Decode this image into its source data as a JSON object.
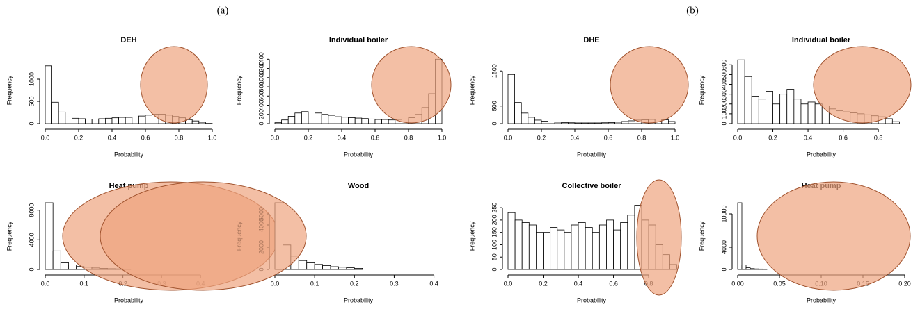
{
  "panels": [
    {
      "label": "(a)"
    },
    {
      "label": "(b)"
    }
  ],
  "chart_data": [
    {
      "type": "histogram",
      "title": "DEH",
      "xlabel": "Probability",
      "ylabel": "Frequency",
      "color": "#ffffff",
      "bins": [
        0,
        0.04,
        0.08,
        0.12,
        0.16,
        0.2,
        0.24,
        0.28,
        0.32,
        0.36,
        0.4,
        0.44,
        0.48,
        0.52,
        0.56,
        0.6,
        0.64,
        0.68,
        0.72,
        0.76,
        0.8,
        0.84,
        0.88,
        0.92,
        0.96,
        1.0
      ],
      "values": [
        1300,
        480,
        260,
        150,
        120,
        110,
        100,
        100,
        110,
        120,
        130,
        140,
        140,
        150,
        170,
        190,
        210,
        210,
        190,
        160,
        130,
        90,
        60,
        30,
        5
      ],
      "xlim": [
        0,
        1
      ],
      "xticks": [
        {
          "value": 0,
          "label": "0.0"
        },
        0.2,
        0.4,
        0.6,
        0.8,
        {
          "value": 1,
          "label": "1.0"
        }
      ],
      "ylim": [
        0,
        1500
      ],
      "yticks": [
        0,
        500,
        1000
      ]
    },
    {
      "type": "histogram",
      "title": "Individual boiler",
      "xlabel": "Probability",
      "ylabel": "Frequency",
      "color": "#ffffff",
      "bins": [
        0,
        0.04,
        0.08,
        0.12,
        0.16,
        0.2,
        0.24,
        0.28,
        0.32,
        0.36,
        0.4,
        0.44,
        0.48,
        0.52,
        0.56,
        0.6,
        0.64,
        0.68,
        0.72,
        0.76,
        0.8,
        0.84,
        0.88,
        0.92,
        0.96,
        1.0
      ],
      "values": [
        20,
        80,
        160,
        230,
        260,
        250,
        230,
        200,
        180,
        150,
        140,
        130,
        120,
        110,
        100,
        90,
        90,
        80,
        90,
        100,
        130,
        200,
        350,
        650,
        1400
      ],
      "xlim": [
        0,
        1
      ],
      "xticks": [
        {
          "value": 0,
          "label": "0.0"
        },
        0.2,
        0.4,
        0.6,
        0.8,
        {
          "value": 1,
          "label": "1.0"
        }
      ],
      "ylim": [
        0,
        1450
      ],
      "yticks": [
        0,
        200,
        400,
        600,
        800,
        1000,
        1200,
        1400
      ]
    },
    {
      "type": "histogram",
      "title": "Heat pump",
      "xlabel": "Probability",
      "ylabel": "Frequency",
      "color": "#ffffff",
      "bins": [
        0,
        0.02,
        0.04,
        0.06,
        0.08,
        0.1,
        0.12,
        0.14,
        0.16,
        0.18,
        0.2,
        0.22
      ],
      "values": [
        9000,
        2500,
        900,
        600,
        400,
        300,
        200,
        150,
        100,
        80,
        50
      ],
      "xlim": [
        0,
        0.43
      ],
      "xticks": [
        {
          "value": 0,
          "label": "0.0"
        },
        0.1,
        0.2,
        0.3,
        0.4
      ],
      "ylim": [
        0,
        9000
      ],
      "yticks": [
        0,
        4000,
        8000
      ]
    },
    {
      "type": "histogram",
      "title": "Wood",
      "xlabel": "Probability",
      "ylabel": "Frequency",
      "color": "#ffffff",
      "bins": [
        0,
        0.02,
        0.04,
        0.06,
        0.08,
        0.1,
        0.12,
        0.14,
        0.16,
        0.18,
        0.2,
        0.22
      ],
      "values": [
        6000,
        2200,
        1200,
        800,
        600,
        450,
        350,
        250,
        200,
        150,
        100
      ],
      "xlim": [
        0,
        0.42
      ],
      "xticks": [
        {
          "value": 0,
          "label": "0.0"
        },
        0.1,
        0.2,
        0.3,
        0.4
      ],
      "ylim": [
        0,
        6000
      ],
      "yticks": [
        0,
        2000,
        4000,
        5000
      ]
    },
    {
      "type": "histogram",
      "title": "DHE",
      "xlabel": "Probability",
      "ylabel": "Frequency",
      "color": "#ffffff",
      "bins": [
        0,
        0.04,
        0.08,
        0.12,
        0.16,
        0.2,
        0.24,
        0.28,
        0.32,
        0.36,
        0.4,
        0.44,
        0.48,
        0.52,
        0.56,
        0.6,
        0.64,
        0.68,
        0.72,
        0.76,
        0.8,
        0.84,
        0.88,
        0.92,
        0.96,
        1.0
      ],
      "values": [
        1400,
        600,
        300,
        180,
        100,
        70,
        50,
        40,
        30,
        25,
        20,
        20,
        20,
        20,
        25,
        30,
        40,
        60,
        80,
        100,
        110,
        120,
        130,
        110,
        60
      ],
      "xlim": [
        0,
        1
      ],
      "xticks": [
        {
          "value": 0,
          "label": "0.0"
        },
        0.2,
        0.4,
        0.6,
        0.8,
        {
          "value": 1,
          "label": "1.0"
        }
      ],
      "ylim": [
        0,
        1900
      ],
      "yticks": [
        0,
        500,
        1500
      ]
    },
    {
      "type": "histogram",
      "title": "Individual boiler",
      "xlabel": "Probability",
      "ylabel": "Frequency",
      "color": "#ffffff",
      "bins": [
        0,
        0.04,
        0.08,
        0.12,
        0.16,
        0.2,
        0.24,
        0.28,
        0.32,
        0.36,
        0.4,
        0.44,
        0.48,
        0.52,
        0.56,
        0.6,
        0.64,
        0.68,
        0.72,
        0.76,
        0.8,
        0.84,
        0.88,
        0.92
      ],
      "values": [
        650,
        480,
        280,
        250,
        330,
        200,
        300,
        350,
        250,
        200,
        220,
        200,
        180,
        150,
        130,
        120,
        110,
        100,
        90,
        80,
        70,
        50,
        20
      ],
      "xlim": [
        0,
        0.95
      ],
      "xticks": [
        {
          "value": 0,
          "label": "0.0"
        },
        0.2,
        0.4,
        0.6,
        0.8
      ],
      "ylim": [
        0,
        680
      ],
      "yticks": [
        0,
        100,
        200,
        300,
        400,
        500,
        600
      ]
    },
    {
      "type": "histogram",
      "title": "Collective boiler",
      "xlabel": "Probability",
      "ylabel": "Frequency",
      "color": "#ffffff",
      "bins": [
        0,
        0.04,
        0.08,
        0.12,
        0.16,
        0.2,
        0.24,
        0.28,
        0.32,
        0.36,
        0.4,
        0.44,
        0.48,
        0.52,
        0.56,
        0.6,
        0.64,
        0.68,
        0.72,
        0.76,
        0.8,
        0.84,
        0.88,
        0.92,
        0.96
      ],
      "values": [
        230,
        200,
        190,
        180,
        150,
        150,
        170,
        160,
        150,
        180,
        190,
        170,
        150,
        180,
        200,
        160,
        190,
        220,
        260,
        200,
        180,
        100,
        60,
        20
      ],
      "xlim": [
        0,
        0.95
      ],
      "xticks": [
        {
          "value": 0,
          "label": "0.0"
        },
        0.2,
        0.4,
        0.6,
        0.8
      ],
      "ylim": [
        0,
        270
      ],
      "yticks": [
        0,
        50,
        100,
        150,
        200,
        250
      ]
    },
    {
      "type": "histogram",
      "title": "Heat pump",
      "xlabel": "Probability",
      "ylabel": "Frequency",
      "color": "#ffffff",
      "bins": [
        0,
        0.005,
        0.01,
        0.015,
        0.02,
        0.025,
        0.03,
        0.035
      ],
      "values": [
        12000,
        800,
        300,
        150,
        100,
        80,
        50
      ],
      "xlim": [
        0,
        0.2
      ],
      "xticks": [
        {
          "value": 0,
          "label": "0.00"
        },
        0.05,
        {
          "value": 0.1,
          "label": "0.10"
        },
        0.15,
        {
          "value": 0.2,
          "label": "0.20"
        }
      ],
      "ylim": [
        0,
        12000
      ],
      "yticks": [
        0,
        4000,
        10000
      ]
    }
  ]
}
